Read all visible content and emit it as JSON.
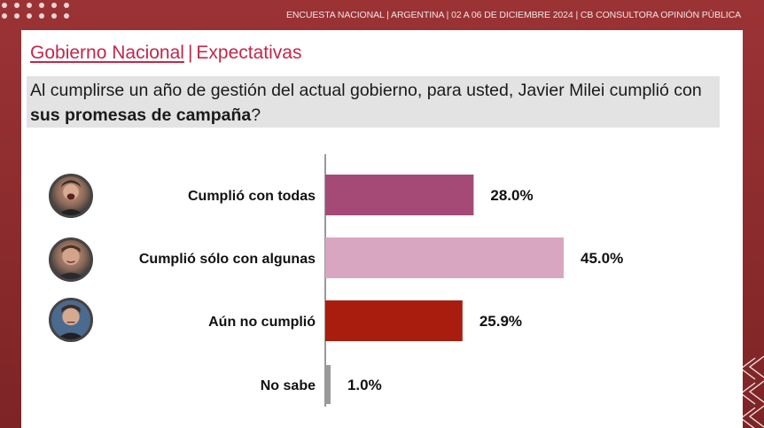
{
  "header": {
    "text": "ENCUESTA NACIONAL  |  ARGENTINA  | 02 A 06 DE DICIEMBRE 2024 | CB CONSULTORA OPINIÓN PÚBLICA"
  },
  "title": {
    "main": "Gobierno Nacional",
    "separator": "|",
    "sub": "Expectativas"
  },
  "question": {
    "part1": "Al cumplirse un año de gestión del actual gobierno, para usted, Javier Milei cumplió con ",
    "bold": "sus promesas de campaña",
    "part2": "?"
  },
  "colors": {
    "accent": "#c2274b",
    "bar_1": "#a54a77",
    "bar_2": "#d9a6c2",
    "bar_3": "#a91d0e",
    "bar_4": "#9a9a9a"
  },
  "chart_data": {
    "type": "bar",
    "orientation": "horizontal",
    "categories": [
      "Cumplió con todas",
      "Cumplió sólo con algunas",
      "Aún no cumplió",
      "No sabe"
    ],
    "values": [
      28.0,
      45.0,
      25.9,
      1.0
    ],
    "value_labels": [
      "28.0%",
      "45.0%",
      "25.9%",
      "1.0%"
    ],
    "unit": "%",
    "colors": [
      "#a54a77",
      "#d9a6c2",
      "#a91d0e",
      "#9a9a9a"
    ],
    "xlim": [
      0,
      45
    ],
    "grid": false,
    "legend": "none"
  },
  "avatars": [
    "avatar-emotive",
    "avatar-smiling",
    "avatar-serious"
  ]
}
